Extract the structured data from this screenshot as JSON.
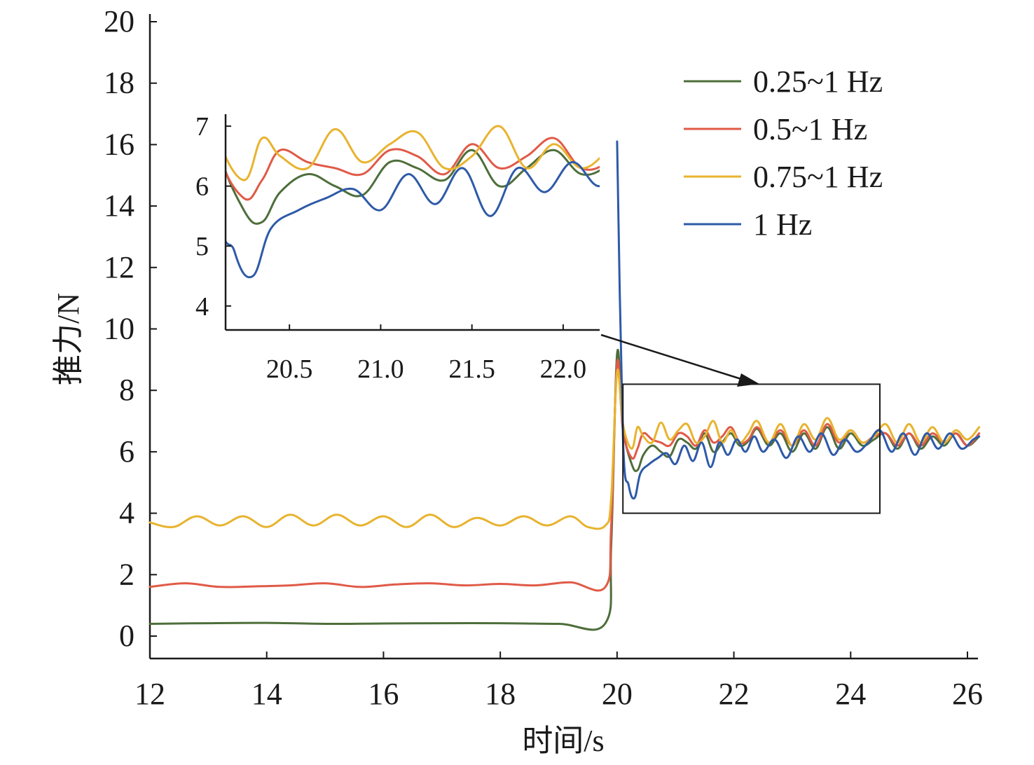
{
  "chart_data": {
    "type": "line",
    "xlabel": "时间/s",
    "ylabel": "推力/N",
    "xlim": [
      12,
      26
    ],
    "ylim": [
      0,
      20
    ],
    "xticks": [
      12,
      14,
      16,
      18,
      20,
      22,
      24,
      26
    ],
    "yticks": [
      0,
      2,
      4,
      6,
      8,
      10,
      12,
      14,
      16,
      18,
      20
    ],
    "grid": false,
    "legend_position": "top-right",
    "series": [
      {
        "name": "0.25~1 Hz",
        "color": "#4e6e3a",
        "x": [
          12,
          13,
          14,
          15,
          16,
          17,
          18,
          19,
          19.8,
          19.9,
          20.0,
          20.1,
          20.25,
          20.35,
          20.45,
          20.6,
          20.75,
          20.9,
          21.05,
          21.2,
          21.35,
          21.5,
          21.65,
          21.8,
          21.95,
          22.1,
          22.25,
          22.4,
          22.6,
          22.8,
          23.0,
          23.2,
          23.4,
          23.6,
          23.8,
          24.0,
          24.2,
          24.4,
          24.6,
          24.8,
          25.0,
          25.2,
          25.4,
          25.6,
          25.8,
          26.0,
          26.2
        ],
        "values": [
          0.4,
          0.42,
          0.43,
          0.4,
          0.41,
          0.42,
          0.42,
          0.4,
          0.42,
          3.0,
          9.2,
          6.8,
          5.6,
          5.4,
          5.9,
          6.2,
          6.0,
          5.85,
          6.4,
          6.3,
          6.1,
          6.6,
          6.0,
          6.3,
          6.6,
          6.2,
          6.35,
          6.75,
          6.2,
          6.6,
          6.0,
          6.6,
          6.1,
          6.8,
          6.1,
          6.6,
          6.2,
          6.4,
          6.6,
          6.1,
          6.6,
          6.1,
          6.5,
          6.2,
          6.6,
          6.2,
          6.5
        ]
      },
      {
        "name": "0.5~1 Hz",
        "color": "#e05a47",
        "x": [
          12,
          12.6,
          13.2,
          13.8,
          14.4,
          15.0,
          15.6,
          16.2,
          16.8,
          17.4,
          18.0,
          18.6,
          19.2,
          19.8,
          19.9,
          20.0,
          20.1,
          20.25,
          20.35,
          20.45,
          20.6,
          20.75,
          20.9,
          21.05,
          21.2,
          21.35,
          21.5,
          21.65,
          21.8,
          21.95,
          22.1,
          22.25,
          22.4,
          22.6,
          22.8,
          23.0,
          23.2,
          23.4,
          23.6,
          23.8,
          24.0,
          24.2,
          24.4,
          24.6,
          24.8,
          25.0,
          25.2,
          25.4,
          25.6,
          25.8,
          26.0,
          26.2
        ],
        "values": [
          1.6,
          1.72,
          1.6,
          1.62,
          1.65,
          1.72,
          1.6,
          1.68,
          1.72,
          1.65,
          1.7,
          1.65,
          1.75,
          1.6,
          3.6,
          8.9,
          6.7,
          5.8,
          6.1,
          6.6,
          6.4,
          6.3,
          6.2,
          6.6,
          6.5,
          6.2,
          6.7,
          6.3,
          6.5,
          6.8,
          6.3,
          6.4,
          6.8,
          6.3,
          6.7,
          6.2,
          6.7,
          6.2,
          6.9,
          6.3,
          6.7,
          6.3,
          6.5,
          6.6,
          6.2,
          6.6,
          6.2,
          6.6,
          6.3,
          6.6,
          6.2,
          6.6
        ]
      },
      {
        "name": "0.75~1 Hz",
        "color": "#e8b32e",
        "x": [
          12,
          12.4,
          12.8,
          13.2,
          13.6,
          14.0,
          14.4,
          14.8,
          15.2,
          15.6,
          16.0,
          16.4,
          16.8,
          17.2,
          17.6,
          18.0,
          18.4,
          18.8,
          19.2,
          19.5,
          19.8,
          19.9,
          20.0,
          20.1,
          20.25,
          20.35,
          20.45,
          20.6,
          20.75,
          20.9,
          21.05,
          21.2,
          21.35,
          21.5,
          21.65,
          21.8,
          21.95,
          22.1,
          22.25,
          22.4,
          22.6,
          22.8,
          23.0,
          23.2,
          23.4,
          23.6,
          23.8,
          24.0,
          24.2,
          24.4,
          24.6,
          24.8,
          25.0,
          25.2,
          25.4,
          25.6,
          25.8,
          26.0,
          26.2
        ],
        "values": [
          3.7,
          3.55,
          3.9,
          3.6,
          3.9,
          3.55,
          3.95,
          3.6,
          3.95,
          3.6,
          3.9,
          3.55,
          3.95,
          3.55,
          3.85,
          3.6,
          3.9,
          3.6,
          3.9,
          3.55,
          3.6,
          4.5,
          8.6,
          6.9,
          6.1,
          6.8,
          6.5,
          6.3,
          6.95,
          6.4,
          6.7,
          6.9,
          6.3,
          6.5,
          7.0,
          6.3,
          6.7,
          6.3,
          6.6,
          7.0,
          6.3,
          6.9,
          6.2,
          6.9,
          6.4,
          7.1,
          6.4,
          6.7,
          6.3,
          6.5,
          6.9,
          6.3,
          6.9,
          6.3,
          6.8,
          6.3,
          6.7,
          6.4,
          6.8
        ]
      },
      {
        "name": "1 Hz",
        "color": "#2e5aa8",
        "x": [
          20.0,
          20.1,
          20.2,
          20.3,
          20.4,
          20.55,
          20.7,
          20.85,
          21.0,
          21.15,
          21.3,
          21.45,
          21.6,
          21.75,
          21.9,
          22.05,
          22.2,
          22.35,
          22.5,
          22.7,
          22.9,
          23.1,
          23.3,
          23.5,
          23.7,
          23.9,
          24.1,
          24.3,
          24.5,
          24.7,
          24.9,
          25.1,
          25.3,
          25.5,
          25.7,
          25.9,
          26.1,
          26.2
        ],
        "values": [
          16.1,
          6.5,
          4.9,
          4.5,
          5.3,
          5.6,
          5.8,
          5.95,
          5.6,
          6.2,
          5.7,
          6.3,
          5.5,
          6.3,
          5.9,
          6.4,
          6.0,
          6.5,
          6.0,
          6.4,
          5.8,
          6.5,
          6.0,
          6.6,
          5.9,
          6.4,
          6.0,
          6.3,
          6.7,
          6.0,
          6.6,
          5.9,
          6.6,
          6.1,
          6.6,
          6.1,
          6.4,
          6.5
        ]
      }
    ],
    "zoom_box": {
      "xlim": [
        20.1,
        24.5
      ],
      "ylim": [
        4.0,
        8.2
      ]
    },
    "inset": {
      "xlim": [
        20.15,
        22.2
      ],
      "ylim": [
        3.6,
        7.2
      ],
      "xticks": [
        "20.5",
        "21.0",
        "21.5",
        "22.0"
      ],
      "yticks": [
        "4",
        "5",
        "6",
        "7"
      ]
    }
  }
}
